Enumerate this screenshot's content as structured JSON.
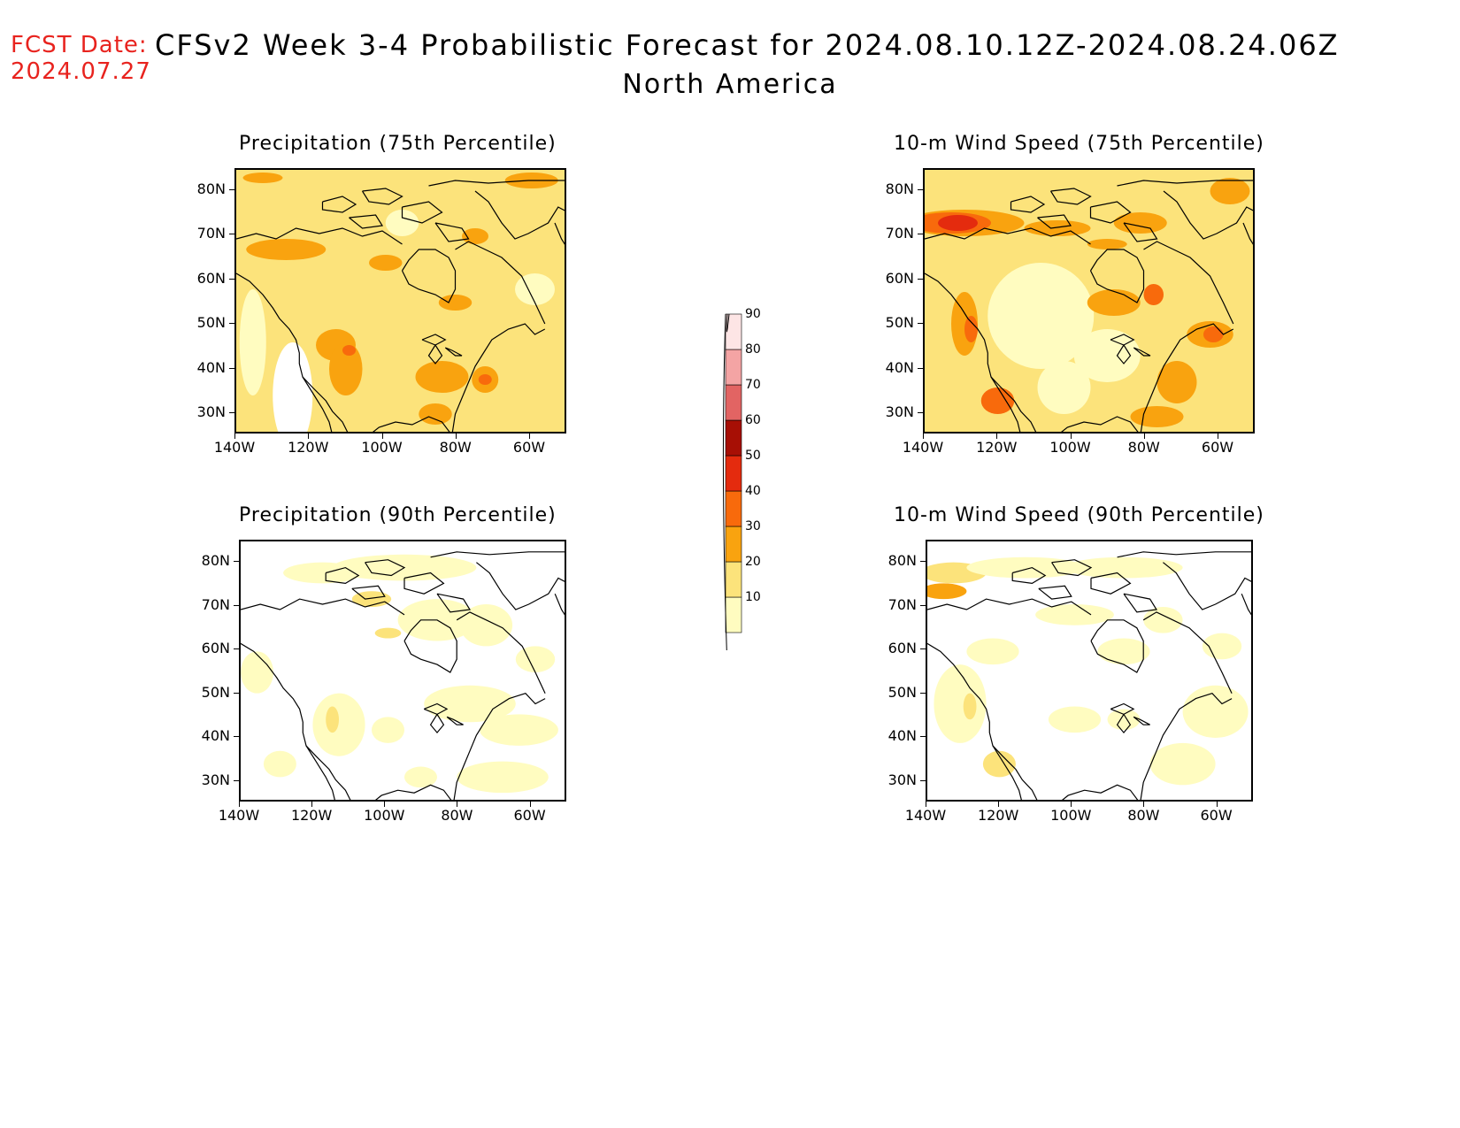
{
  "header": {
    "fcst_label": "FCST Date:",
    "fcst_date": "2024.07.27",
    "title": "CFSv2 Week 3-4 Probabilistic Forecast for 2024.08.10.12Z-2024.08.24.06Z",
    "subtitle": "North America"
  },
  "panels": [
    {
      "title": "Precipitation (75th Percentile)",
      "variable": "precipitation",
      "percentile": 75
    },
    {
      "title": "10-m Wind Speed (75th Percentile)",
      "variable": "wind-speed",
      "percentile": 75
    },
    {
      "title": "Precipitation (90th Percentile)",
      "variable": "precipitation",
      "percentile": 90
    },
    {
      "title": "10-m Wind Speed (90th Percentile)",
      "variable": "wind-speed",
      "percentile": 90
    }
  ],
  "axes": {
    "lat_labels": [
      "80N",
      "70N",
      "60N",
      "50N",
      "40N",
      "30N"
    ],
    "lon_labels": [
      "140W",
      "120W",
      "100W",
      "80W",
      "60W"
    ]
  },
  "legend": {
    "levels": [
      "10",
      "20",
      "30",
      "40",
      "50",
      "60",
      "70",
      "80",
      "90"
    ],
    "colors": [
      "#fffcc0",
      "#fce37b",
      "#f9a30f",
      "#f86a0c",
      "#e42b0e",
      "#a70f05",
      "#e26463",
      "#f4a4a4",
      "#fde5e5"
    ]
  },
  "palette": {
    "white": "#ffffff",
    "c10": "#fffcc0",
    "c20": "#fce37b",
    "c30": "#f9a30f",
    "c40": "#f86a0c",
    "c50": "#e42b0e"
  }
}
